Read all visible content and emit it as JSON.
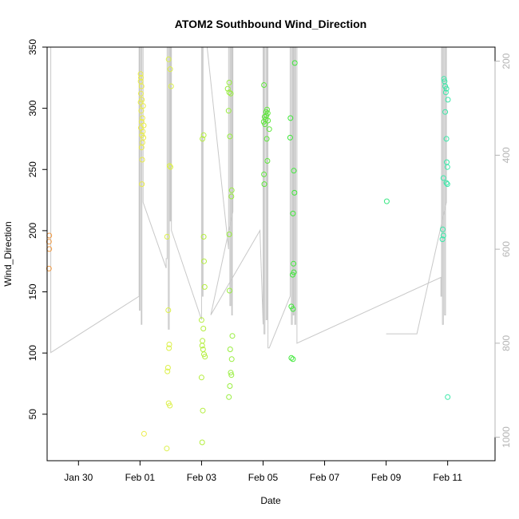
{
  "chart_data": {
    "type": "scatter",
    "title": "ATOM2 Southbound Wind_Direction",
    "xlabel": "Date",
    "ylabel": "Wind_Direction",
    "x_domain_days": [
      -3.02,
      11.54
    ],
    "ylim": [
      12,
      350
    ],
    "y_ticks": [
      50,
      100,
      150,
      200,
      250,
      300,
      350
    ],
    "x_ticks": [
      {
        "day": -2,
        "label": "Jan 30"
      },
      {
        "day": 0,
        "label": "Feb 01"
      },
      {
        "day": 2,
        "label": "Feb 03"
      },
      {
        "day": 4,
        "label": "Feb 05"
      },
      {
        "day": 6,
        "label": "Feb 07"
      },
      {
        "day": 8,
        "label": "Feb 09"
      },
      {
        "day": 10,
        "label": "Feb 11"
      }
    ],
    "secondary_axis": {
      "label": "",
      "reversed": true,
      "range": [
        170,
        1050
      ],
      "ticks": [
        200,
        400,
        600,
        800,
        1000
      ]
    },
    "grid": false,
    "points": [
      {
        "x": -2.95,
        "y": 196,
        "color": "#f39c45"
      },
      {
        "x": -2.96,
        "y": 191,
        "color": "#f39c45"
      },
      {
        "x": -2.95,
        "y": 185,
        "color": "#f39c45"
      },
      {
        "x": -2.96,
        "y": 169,
        "color": "#f39c45"
      },
      {
        "x": 0.02,
        "y": 328,
        "color": "#eaec4a"
      },
      {
        "x": 0.03,
        "y": 325,
        "color": "#eaec4a"
      },
      {
        "x": 0.02,
        "y": 322,
        "color": "#eaec4a"
      },
      {
        "x": 0.05,
        "y": 318,
        "color": "#eaec4a"
      },
      {
        "x": 0.03,
        "y": 312,
        "color": "#eaec4a"
      },
      {
        "x": 0.06,
        "y": 307,
        "color": "#eaec4a"
      },
      {
        "x": 0.02,
        "y": 305,
        "color": "#eaec4a"
      },
      {
        "x": 0.1,
        "y": 302,
        "color": "#eaec4a"
      },
      {
        "x": 0.04,
        "y": 298,
        "color": "#eaec4a"
      },
      {
        "x": 0.08,
        "y": 292,
        "color": "#eaec4a"
      },
      {
        "x": 0.05,
        "y": 289,
        "color": "#eaec4a"
      },
      {
        "x": 0.12,
        "y": 286,
        "color": "#eaec4a"
      },
      {
        "x": 0.03,
        "y": 284,
        "color": "#eaec4a"
      },
      {
        "x": 0.09,
        "y": 281,
        "color": "#eaec4a"
      },
      {
        "x": 0.06,
        "y": 278,
        "color": "#eaec4a"
      },
      {
        "x": 0.11,
        "y": 276,
        "color": "#eaec4a"
      },
      {
        "x": 0.08,
        "y": 272,
        "color": "#eaec4a"
      },
      {
        "x": 0.05,
        "y": 268,
        "color": "#eaec4a"
      },
      {
        "x": 0.07,
        "y": 258,
        "color": "#eaec4a"
      },
      {
        "x": 0.06,
        "y": 238,
        "color": "#eaec4a"
      },
      {
        "x": 0.13,
        "y": 34,
        "color": "#eaec4a"
      },
      {
        "x": 0.93,
        "y": 340,
        "color": "#dcf04a"
      },
      {
        "x": 0.98,
        "y": 332,
        "color": "#dcf04a"
      },
      {
        "x": 1.01,
        "y": 318,
        "color": "#dcf04a"
      },
      {
        "x": 0.96,
        "y": 253,
        "color": "#dcf04a"
      },
      {
        "x": 0.99,
        "y": 252,
        "color": "#dcf04a"
      },
      {
        "x": 0.88,
        "y": 195,
        "color": "#dcf04a"
      },
      {
        "x": 0.92,
        "y": 135,
        "color": "#dcf04a"
      },
      {
        "x": 0.95,
        "y": 107,
        "color": "#dcf04a"
      },
      {
        "x": 0.94,
        "y": 104,
        "color": "#dcf04a"
      },
      {
        "x": 0.91,
        "y": 88,
        "color": "#dcf04a"
      },
      {
        "x": 0.89,
        "y": 85,
        "color": "#dcf04a"
      },
      {
        "x": 0.93,
        "y": 59,
        "color": "#dcf04a"
      },
      {
        "x": 0.97,
        "y": 57,
        "color": "#dcf04a"
      },
      {
        "x": 0.87,
        "y": 22,
        "color": "#dcf04a"
      },
      {
        "x": 2.07,
        "y": 278,
        "color": "#b4ee3e"
      },
      {
        "x": 2.03,
        "y": 275,
        "color": "#b4ee3e"
      },
      {
        "x": 2.07,
        "y": 195,
        "color": "#b4ee3e"
      },
      {
        "x": 2.08,
        "y": 175,
        "color": "#b4ee3e"
      },
      {
        "x": 2.1,
        "y": 154,
        "color": "#b4ee3e"
      },
      {
        "x": 2.0,
        "y": 127,
        "color": "#b4ee3e"
      },
      {
        "x": 2.06,
        "y": 120,
        "color": "#b4ee3e"
      },
      {
        "x": 2.03,
        "y": 110,
        "color": "#b4ee3e"
      },
      {
        "x": 2.02,
        "y": 106,
        "color": "#b4ee3e"
      },
      {
        "x": 2.05,
        "y": 103,
        "color": "#b4ee3e"
      },
      {
        "x": 2.08,
        "y": 99,
        "color": "#b4ee3e"
      },
      {
        "x": 2.11,
        "y": 97,
        "color": "#b4ee3e"
      },
      {
        "x": 2.0,
        "y": 80,
        "color": "#b4ee3e"
      },
      {
        "x": 2.04,
        "y": 53,
        "color": "#b4ee3e"
      },
      {
        "x": 2.02,
        "y": 27,
        "color": "#b4ee3e"
      },
      {
        "x": 2.9,
        "y": 321,
        "color": "#98ee3e"
      },
      {
        "x": 2.85,
        "y": 316,
        "color": "#98ee3e"
      },
      {
        "x": 2.9,
        "y": 313,
        "color": "#98ee3e"
      },
      {
        "x": 2.95,
        "y": 312,
        "color": "#98ee3e"
      },
      {
        "x": 2.88,
        "y": 298,
        "color": "#98ee3e"
      },
      {
        "x": 2.92,
        "y": 277,
        "color": "#98ee3e"
      },
      {
        "x": 2.98,
        "y": 233,
        "color": "#98ee3e"
      },
      {
        "x": 2.97,
        "y": 228,
        "color": "#98ee3e"
      },
      {
        "x": 2.9,
        "y": 197,
        "color": "#98ee3e"
      },
      {
        "x": 2.91,
        "y": 151,
        "color": "#98ee3e"
      },
      {
        "x": 3.0,
        "y": 114,
        "color": "#98ee3e"
      },
      {
        "x": 2.93,
        "y": 103,
        "color": "#98ee3e"
      },
      {
        "x": 2.98,
        "y": 95,
        "color": "#98ee3e"
      },
      {
        "x": 2.95,
        "y": 84,
        "color": "#98ee3e"
      },
      {
        "x": 2.97,
        "y": 82,
        "color": "#98ee3e"
      },
      {
        "x": 2.92,
        "y": 73,
        "color": "#98ee3e"
      },
      {
        "x": 2.89,
        "y": 64,
        "color": "#98ee3e"
      },
      {
        "x": 4.03,
        "y": 319,
        "color": "#5ee83a"
      },
      {
        "x": 4.13,
        "y": 299,
        "color": "#5ee83a"
      },
      {
        "x": 4.1,
        "y": 297,
        "color": "#5ee83a"
      },
      {
        "x": 4.15,
        "y": 296,
        "color": "#5ee83a"
      },
      {
        "x": 4.11,
        "y": 294,
        "color": "#5ee83a"
      },
      {
        "x": 4.05,
        "y": 293,
        "color": "#5ee83a"
      },
      {
        "x": 4.09,
        "y": 291,
        "color": "#5ee83a"
      },
      {
        "x": 4.16,
        "y": 290,
        "color": "#5ee83a"
      },
      {
        "x": 4.02,
        "y": 289,
        "color": "#5ee83a"
      },
      {
        "x": 4.06,
        "y": 287,
        "color": "#5ee83a"
      },
      {
        "x": 4.2,
        "y": 283,
        "color": "#5ee83a"
      },
      {
        "x": 4.12,
        "y": 275,
        "color": "#5ee83a"
      },
      {
        "x": 4.14,
        "y": 257,
        "color": "#5ee83a"
      },
      {
        "x": 4.03,
        "y": 246,
        "color": "#5ee83a"
      },
      {
        "x": 4.04,
        "y": 238,
        "color": "#5ee83a"
      },
      {
        "x": 5.03,
        "y": 337,
        "color": "#3ee838"
      },
      {
        "x": 4.89,
        "y": 292,
        "color": "#3ee838"
      },
      {
        "x": 4.88,
        "y": 276,
        "color": "#3ee838"
      },
      {
        "x": 5.0,
        "y": 249,
        "color": "#3ee838"
      },
      {
        "x": 5.02,
        "y": 231,
        "color": "#3ee838"
      },
      {
        "x": 4.97,
        "y": 214,
        "color": "#3ee838"
      },
      {
        "x": 4.99,
        "y": 173,
        "color": "#3ee838"
      },
      {
        "x": 5.0,
        "y": 166,
        "color": "#3ee838"
      },
      {
        "x": 4.96,
        "y": 164,
        "color": "#3ee838"
      },
      {
        "x": 4.92,
        "y": 138,
        "color": "#3ee838"
      },
      {
        "x": 4.97,
        "y": 136,
        "color": "#3ee838"
      },
      {
        "x": 4.92,
        "y": 96,
        "color": "#3ee838"
      },
      {
        "x": 4.97,
        "y": 95,
        "color": "#3ee838"
      },
      {
        "x": 8.02,
        "y": 224,
        "color": "#3ae884"
      },
      {
        "x": 9.88,
        "y": 324,
        "color": "#3ae8a8"
      },
      {
        "x": 9.9,
        "y": 322,
        "color": "#3ae8a8"
      },
      {
        "x": 9.92,
        "y": 318,
        "color": "#3ae8a8"
      },
      {
        "x": 9.96,
        "y": 316,
        "color": "#3ae8a8"
      },
      {
        "x": 9.94,
        "y": 313,
        "color": "#3ae8a8"
      },
      {
        "x": 10.01,
        "y": 307,
        "color": "#3ae8a8"
      },
      {
        "x": 9.92,
        "y": 297,
        "color": "#3ae8a8"
      },
      {
        "x": 9.96,
        "y": 275,
        "color": "#3ae8a8"
      },
      {
        "x": 9.97,
        "y": 256,
        "color": "#3ae8a8"
      },
      {
        "x": 9.99,
        "y": 252,
        "color": "#3ae8a8"
      },
      {
        "x": 9.86,
        "y": 243,
        "color": "#3ae8a8"
      },
      {
        "x": 9.96,
        "y": 239,
        "color": "#3ae8a8"
      },
      {
        "x": 9.99,
        "y": 238,
        "color": "#3ae8a8"
      },
      {
        "x": 9.84,
        "y": 201,
        "color": "#3ae8a8"
      },
      {
        "x": 9.86,
        "y": 196,
        "color": "#3ae8a8"
      },
      {
        "x": 9.83,
        "y": 193,
        "color": "#3ae8a8"
      },
      {
        "x": 10.0,
        "y": 64,
        "color": "#3ae8a8"
      }
    ],
    "secondary_path": [
      [
        -3.0,
        170
      ],
      [
        -3.0,
        170
      ],
      [
        -2.9,
        170
      ],
      [
        -2.9,
        820
      ],
      [
        -0.03,
        700
      ],
      [
        -0.03,
        170
      ],
      [
        -0.02,
        170
      ],
      [
        -0.02,
        730
      ],
      [
        0.0,
        730
      ],
      [
        0.0,
        170
      ],
      [
        0.04,
        170
      ],
      [
        0.04,
        760
      ],
      [
        0.06,
        760
      ],
      [
        0.06,
        170
      ],
      [
        0.1,
        170
      ],
      [
        0.1,
        500
      ],
      [
        0.85,
        640
      ],
      [
        0.85,
        620
      ],
      [
        0.88,
        620
      ],
      [
        0.88,
        170
      ],
      [
        0.92,
        170
      ],
      [
        0.92,
        770
      ],
      [
        0.95,
        770
      ],
      [
        0.95,
        170
      ],
      [
        0.98,
        170
      ],
      [
        0.98,
        540
      ],
      [
        1.0,
        540
      ],
      [
        1.0,
        170
      ],
      [
        1.02,
        170
      ],
      [
        1.02,
        560
      ],
      [
        2.0,
        750
      ],
      [
        2.0,
        170
      ],
      [
        2.03,
        170
      ],
      [
        2.03,
        700
      ],
      [
        2.05,
        700
      ],
      [
        2.05,
        170
      ],
      [
        2.12,
        170
      ],
      [
        2.12,
        170
      ],
      [
        2.18,
        170
      ],
      [
        2.88,
        600
      ],
      [
        2.88,
        170
      ],
      [
        2.92,
        170
      ],
      [
        2.92,
        720
      ],
      [
        2.95,
        720
      ],
      [
        2.95,
        170
      ],
      [
        2.98,
        170
      ],
      [
        2.98,
        740
      ],
      [
        3.0,
        740
      ],
      [
        3.0,
        170
      ],
      [
        3.02,
        170
      ],
      [
        3.02,
        520
      ],
      [
        2.3,
        740
      ],
      [
        3.9,
        560
      ],
      [
        4.0,
        760
      ],
      [
        4.0,
        170
      ],
      [
        4.03,
        170
      ],
      [
        4.03,
        780
      ],
      [
        4.06,
        780
      ],
      [
        4.06,
        170
      ],
      [
        4.1,
        170
      ],
      [
        4.1,
        750
      ],
      [
        4.13,
        750
      ],
      [
        4.13,
        170
      ],
      [
        4.16,
        170
      ],
      [
        4.16,
        810
      ],
      [
        4.2,
        810
      ],
      [
        4.88,
        700
      ],
      [
        4.88,
        170
      ],
      [
        4.92,
        170
      ],
      [
        4.92,
        760
      ],
      [
        4.95,
        760
      ],
      [
        4.95,
        170
      ],
      [
        4.98,
        170
      ],
      [
        4.98,
        740
      ],
      [
        5.0,
        740
      ],
      [
        5.0,
        170
      ],
      [
        5.03,
        170
      ],
      [
        5.03,
        760
      ],
      [
        5.06,
        760
      ],
      [
        5.06,
        170
      ],
      [
        5.1,
        170
      ],
      [
        5.1,
        800
      ],
      [
        9.78,
        660
      ],
      [
        9.78,
        700
      ],
      [
        9.8,
        700
      ],
      [
        9.8,
        170
      ],
      [
        9.83,
        170
      ],
      [
        9.83,
        760
      ],
      [
        9.86,
        760
      ],
      [
        9.86,
        170
      ],
      [
        9.9,
        170
      ],
      [
        9.9,
        740
      ],
      [
        9.93,
        740
      ],
      [
        9.93,
        170
      ],
      [
        9.96,
        170
      ],
      [
        9.96,
        500
      ],
      [
        9.0,
        780
      ],
      [
        8.0,
        780
      ]
    ]
  }
}
